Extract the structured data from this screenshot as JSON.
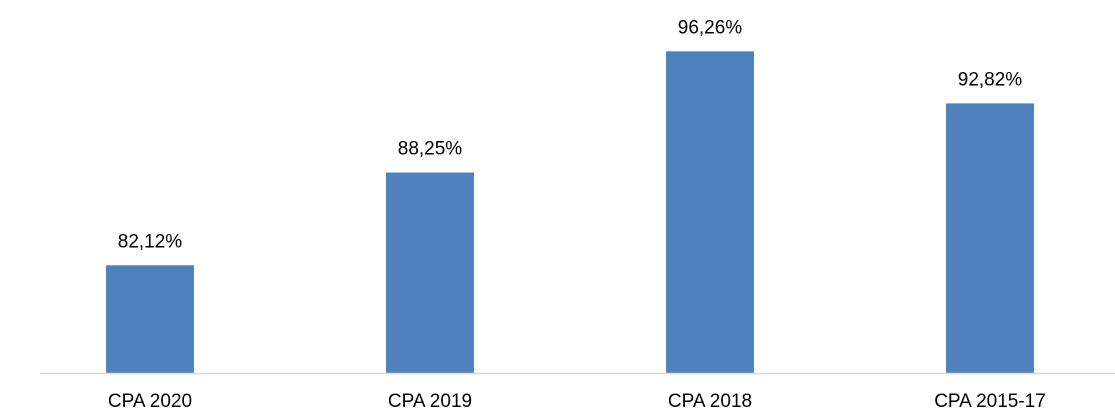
{
  "chart_data": {
    "type": "bar",
    "categories": [
      "CPA 2020",
      "CPA 2019",
      "CPA 2018",
      "CPA 2015-17"
    ],
    "values": [
      82.12,
      88.25,
      96.26,
      92.82
    ],
    "value_labels": [
      "82,12%",
      "88,25%",
      "96,26%",
      "92,82%"
    ],
    "color": "#4f81bd",
    "ylim": [
      75,
      100
    ]
  }
}
